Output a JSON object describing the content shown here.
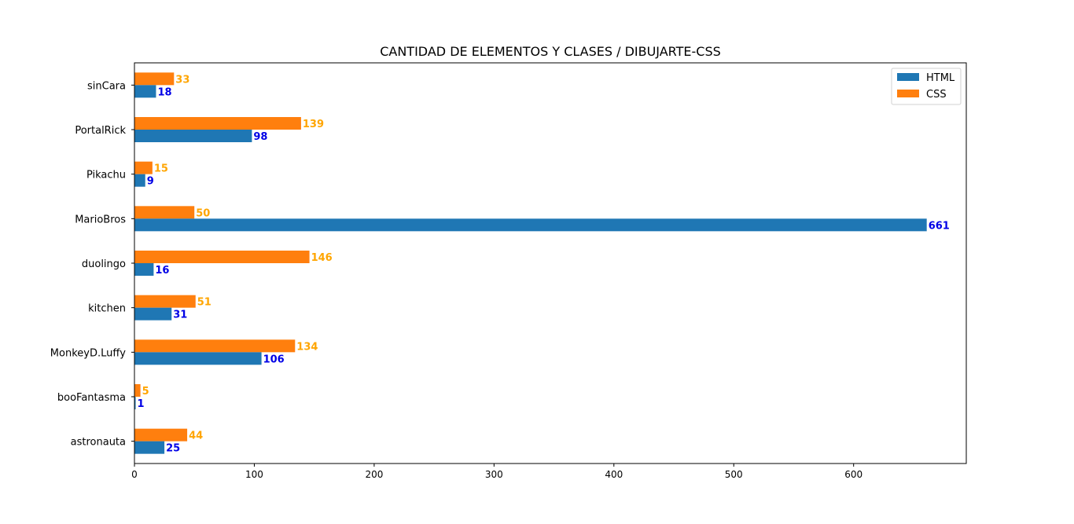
{
  "chart_data": {
    "type": "bar",
    "orientation": "horizontal",
    "title": "CANTIDAD DE ELEMENTOS Y CLASES / DIBUJARTE-CSS",
    "xlabel": "",
    "ylabel": "",
    "categories": [
      "sinCara",
      "PortalRick",
      "Pikachu",
      "MarioBros",
      "duolingo",
      "kitchen",
      "MonkeyD.Luffy",
      "booFantasma",
      "astronauta"
    ],
    "series": [
      {
        "name": "HTML",
        "color": "#1f77b4",
        "label_color": "#0000e6",
        "values": [
          18,
          98,
          9,
          661,
          16,
          31,
          106,
          1,
          25
        ]
      },
      {
        "name": "CSS",
        "color": "#ff7f0e",
        "label_color": "#ffa500",
        "values": [
          33,
          139,
          15,
          50,
          146,
          51,
          134,
          5,
          44
        ]
      }
    ],
    "xlim": [
      0,
      694
    ],
    "xticks": [
      0,
      100,
      200,
      300,
      400,
      500,
      600
    ],
    "grid": false,
    "legend": "top-right"
  }
}
